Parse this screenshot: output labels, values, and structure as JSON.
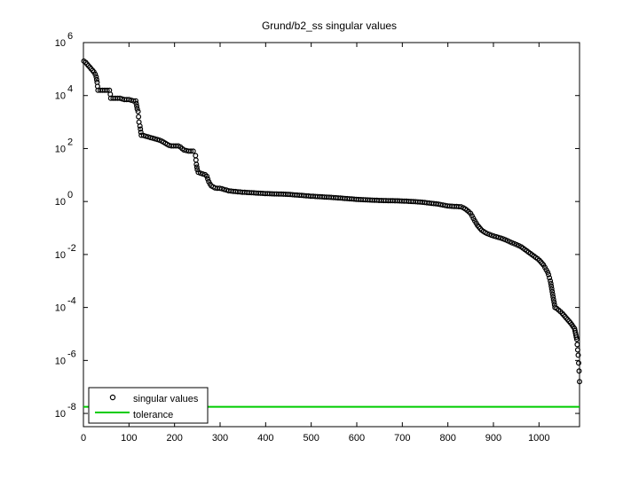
{
  "chart_data": {
    "type": "scatter",
    "title": "Grund/b2_ss singular values",
    "xlabel": "",
    "ylabel": "",
    "xlim": [
      0,
      1089
    ],
    "ylim_log10": [
      -8.5,
      6
    ],
    "y_scale": "log",
    "x_ticks": [
      0,
      100,
      200,
      300,
      400,
      500,
      600,
      700,
      800,
      900,
      1000
    ],
    "y_tick_exponents": [
      -8,
      -6,
      -4,
      -2,
      0,
      2,
      4,
      6
    ],
    "y_tick_base": "10",
    "grid": false,
    "legend_position": "bottom-left",
    "series": [
      {
        "name": "singular values",
        "marker": "circle",
        "color": "#000000",
        "profile_log10": [
          [
            1,
            5.3
          ],
          [
            5,
            5.25
          ],
          [
            10,
            5.15
          ],
          [
            15,
            5.05
          ],
          [
            20,
            4.95
          ],
          [
            25,
            4.85
          ],
          [
            28,
            4.7
          ],
          [
            30,
            4.5
          ],
          [
            32,
            4.2
          ],
          [
            34,
            4.2
          ],
          [
            40,
            4.2
          ],
          [
            50,
            4.2
          ],
          [
            58,
            4.2
          ],
          [
            60,
            3.9
          ],
          [
            70,
            3.9
          ],
          [
            80,
            3.9
          ],
          [
            90,
            3.85
          ],
          [
            100,
            3.85
          ],
          [
            110,
            3.8
          ],
          [
            115,
            3.8
          ],
          [
            118,
            3.5
          ],
          [
            120,
            3.4
          ],
          [
            122,
            3.0
          ],
          [
            124,
            2.85
          ],
          [
            127,
            2.5
          ],
          [
            130,
            2.5
          ],
          [
            140,
            2.45
          ],
          [
            150,
            2.4
          ],
          [
            160,
            2.35
          ],
          [
            170,
            2.3
          ],
          [
            180,
            2.2
          ],
          [
            190,
            2.1
          ],
          [
            200,
            2.1
          ],
          [
            210,
            2.1
          ],
          [
            220,
            1.95
          ],
          [
            230,
            1.9
          ],
          [
            240,
            1.9
          ],
          [
            245,
            1.9
          ],
          [
            248,
            1.4
          ],
          [
            250,
            1.2
          ],
          [
            252,
            1.1
          ],
          [
            260,
            1.05
          ],
          [
            270,
            1.0
          ],
          [
            275,
            0.75
          ],
          [
            280,
            0.6
          ],
          [
            290,
            0.5
          ],
          [
            300,
            0.5
          ],
          [
            320,
            0.4
          ],
          [
            350,
            0.35
          ],
          [
            400,
            0.3
          ],
          [
            450,
            0.27
          ],
          [
            500,
            0.2
          ],
          [
            550,
            0.15
          ],
          [
            600,
            0.08
          ],
          [
            650,
            0.04
          ],
          [
            700,
            0.02
          ],
          [
            740,
            -0.02
          ],
          [
            780,
            -0.1
          ],
          [
            800,
            -0.17
          ],
          [
            830,
            -0.2
          ],
          [
            840,
            -0.3
          ],
          [
            850,
            -0.45
          ],
          [
            858,
            -0.7
          ],
          [
            865,
            -0.9
          ],
          [
            875,
            -1.1
          ],
          [
            885,
            -1.2
          ],
          [
            900,
            -1.3
          ],
          [
            920,
            -1.4
          ],
          [
            940,
            -1.55
          ],
          [
            960,
            -1.7
          ],
          [
            980,
            -1.95
          ],
          [
            1000,
            -2.2
          ],
          [
            1010,
            -2.4
          ],
          [
            1020,
            -2.7
          ],
          [
            1025,
            -3.0
          ],
          [
            1030,
            -3.5
          ],
          [
            1035,
            -4.0
          ],
          [
            1040,
            -4.05
          ],
          [
            1050,
            -4.2
          ],
          [
            1060,
            -4.4
          ],
          [
            1070,
            -4.6
          ],
          [
            1078,
            -4.8
          ],
          [
            1083,
            -5.2
          ],
          [
            1086,
            -5.8
          ],
          [
            1088,
            -6.4
          ],
          [
            1089,
            -6.8
          ]
        ]
      },
      {
        "name": "tolerance",
        "marker": "line",
        "color": "#00cc00",
        "value_log10": -7.75
      }
    ]
  }
}
